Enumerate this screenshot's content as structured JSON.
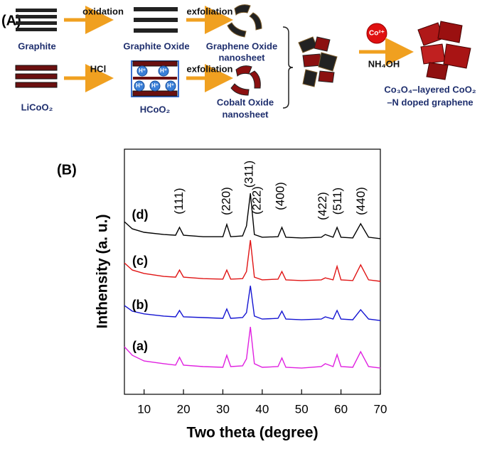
{
  "panel_a": {
    "label": "(A)",
    "graphite": "Graphite",
    "oxidation": "oxidation",
    "graphite_oxide": "Graphite Oxide",
    "exfoliation_1": "exfoliation",
    "graphene_oxide": [
      "Graphene Oxide",
      "nanosheet"
    ],
    "licoo2": "LiCoO₂",
    "hcl": "HCl",
    "h_plus": "H⁺",
    "hcoo2": "HCoO₂",
    "exfoliation_2": "exfoliation",
    "cobalt_oxide": [
      "Cobalt Oxide",
      "nanosheet"
    ],
    "co2_plus": "Co²⁺",
    "nh4oh": "NH₄OH",
    "product": [
      "Co₃O₄–layered CoO₂",
      "–N doped graphene"
    ]
  },
  "chart_data": {
    "type": "line",
    "panel_label": "(B)",
    "x_label": "Two theta (degree)",
    "y_label": "Inthensity (a. u.)",
    "xlim": [
      5,
      70
    ],
    "xticks": [
      10,
      20,
      30,
      40,
      50,
      60,
      70
    ],
    "ylim": [
      0,
      100
    ],
    "x": [
      5,
      7,
      10,
      15,
      18,
      19,
      20,
      25,
      30,
      31,
      32,
      35,
      36,
      37,
      38,
      40,
      44,
      45,
      46,
      50,
      55,
      56,
      58,
      59,
      60,
      63,
      65,
      67,
      70
    ],
    "series": [
      {
        "name": "(a)",
        "color": "#e020e0",
        "values": [
          19.4,
          15.9,
          13.6,
          12.5,
          11.9,
          15.1,
          11.9,
          11.3,
          11.0,
          15.9,
          11.3,
          11.6,
          14.5,
          27.5,
          12.5,
          11.0,
          11.3,
          14.8,
          11.0,
          10.7,
          11.3,
          12.5,
          11.3,
          16.2,
          11.3,
          11.0,
          17.4,
          11.3,
          10.7
        ]
      },
      {
        "name": "(b)",
        "color": "#1414d2",
        "values": [
          36.2,
          33.9,
          32.8,
          31.9,
          31.6,
          34.2,
          31.6,
          31.3,
          31.0,
          34.8,
          31.0,
          31.3,
          33.3,
          44.3,
          31.9,
          30.7,
          31.0,
          33.9,
          30.7,
          30.4,
          30.7,
          31.6,
          30.7,
          34.2,
          30.7,
          30.4,
          34.5,
          30.7,
          30.1
        ]
      },
      {
        "name": "(c)",
        "color": "#e01414",
        "values": [
          53.6,
          50.7,
          49.3,
          48.1,
          47.8,
          50.7,
          47.8,
          47.2,
          47.0,
          50.7,
          47.0,
          47.2,
          50.1,
          62.9,
          47.8,
          46.7,
          47.0,
          50.1,
          46.7,
          46.4,
          46.7,
          47.5,
          46.7,
          52.2,
          46.7,
          46.4,
          52.8,
          46.7,
          46.1
        ]
      },
      {
        "name": "(d)",
        "color": "#000000",
        "values": [
          70.4,
          67.5,
          66.1,
          65.2,
          64.9,
          68.1,
          64.9,
          64.3,
          64.3,
          69.3,
          64.3,
          64.6,
          68.7,
          82.0,
          65.2,
          64.1,
          64.3,
          68.1,
          64.1,
          63.8,
          64.1,
          65.2,
          64.1,
          68.1,
          64.1,
          63.8,
          69.6,
          64.1,
          63.5
        ]
      }
    ],
    "annotations": [
      {
        "text": "(111)",
        "x": 19
      },
      {
        "text": "(220)",
        "x": 31
      },
      {
        "text": "(311)",
        "x": 36.8
      },
      {
        "text": "(222)",
        "x": 38.8
      },
      {
        "text": "(400)",
        "x": 44.7
      },
      {
        "text": "(422)",
        "x": 55.5
      },
      {
        "text": "(511)",
        "x": 59.3
      },
      {
        "text": "(440)",
        "x": 65.2
      }
    ]
  }
}
